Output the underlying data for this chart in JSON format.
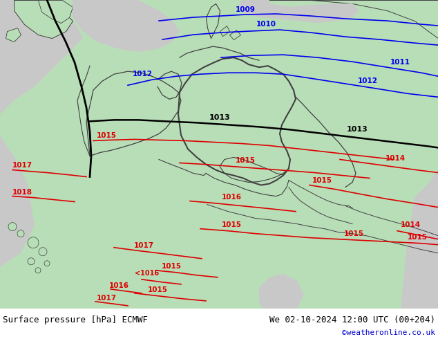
{
  "title_left": "Surface pressure [hPa] ECMWF",
  "title_right": "We 02-10-2024 12:00 UTC (00+204)",
  "credit": "©weatheronline.co.uk",
  "credit_color": "#0000cc",
  "bg_green": "#b8deb8",
  "sea_gray": "#c8c8c8",
  "border_color": "#404040",
  "blue_color": "#0000ee",
  "black_color": "#000000",
  "red_color": "#dd0000",
  "footer_bg": "#ffffff",
  "footer_fontsize": 9,
  "map_bg": "#c8c8c8",
  "figsize": [
    6.34,
    4.9
  ],
  "dpi": 100,
  "isobar_lw": 1.2,
  "label_fontsize": 7.5,
  "border_lw": 1.0
}
